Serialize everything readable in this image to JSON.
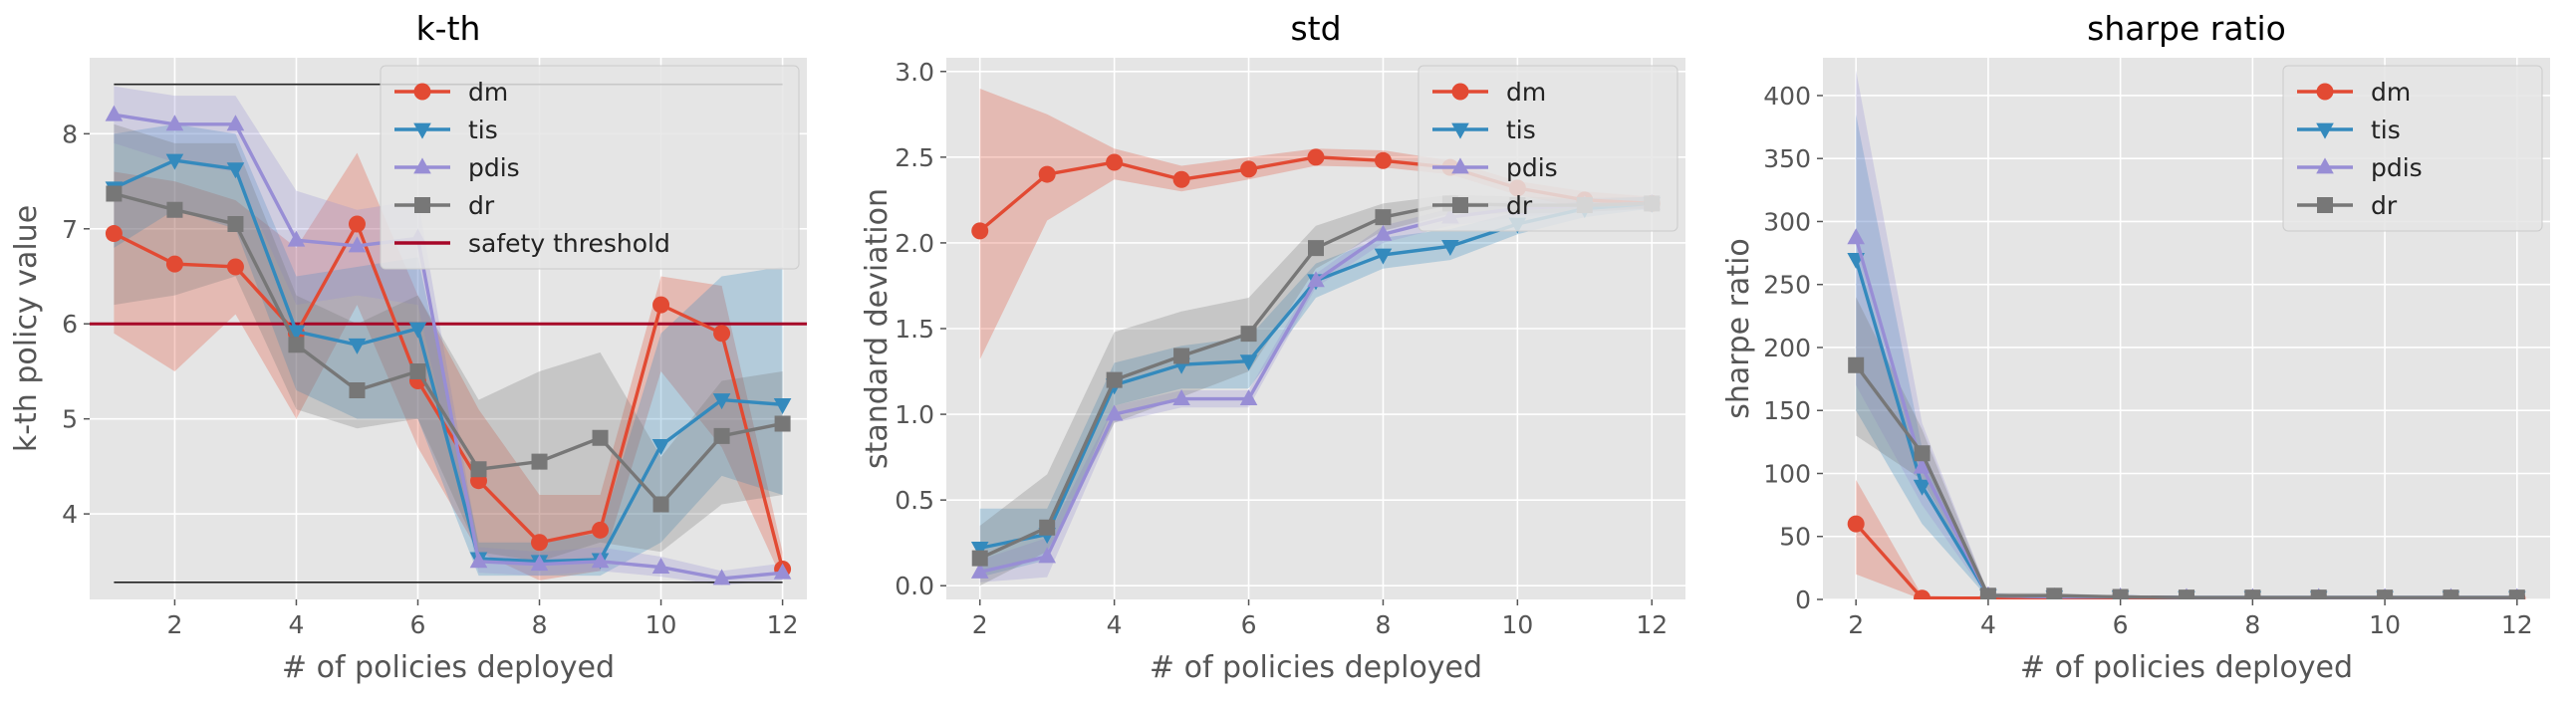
{
  "chart_data": [
    {
      "type": "line",
      "title": "k-th",
      "xlabel": "# of policies deployed",
      "ylabel": "k-th policy value",
      "xlim": [
        0.6,
        12.4
      ],
      "ylim": [
        3.1,
        8.8
      ],
      "xticks": [
        2,
        4,
        6,
        8,
        10,
        12
      ],
      "yticks": [
        4,
        5,
        6,
        7,
        8
      ],
      "grid": true,
      "legend": "top-right",
      "x": [
        1,
        2,
        3,
        4,
        5,
        6,
        7,
        8,
        9,
        10,
        11,
        12
      ],
      "series": [
        {
          "name": "dm",
          "marker": "circle",
          "color": "#E24A33",
          "values": [
            6.95,
            6.63,
            6.6,
            5.9,
            7.05,
            5.4,
            4.35,
            3.7,
            3.83,
            6.2,
            5.9,
            3.42
          ],
          "lower": [
            5.9,
            5.5,
            6.1,
            5.0,
            6.2,
            4.7,
            3.6,
            3.3,
            3.4,
            5.5,
            4.7,
            3.3
          ],
          "upper": [
            7.6,
            7.5,
            7.3,
            6.8,
            7.8,
            6.3,
            5.1,
            4.2,
            4.2,
            6.5,
            6.4,
            3.6
          ]
        },
        {
          "name": "tis",
          "marker": "triangle-down",
          "color": "#348ABD",
          "values": [
            7.43,
            7.72,
            7.63,
            5.92,
            5.78,
            5.95,
            3.53,
            3.5,
            3.52,
            4.72,
            5.2,
            5.15
          ],
          "lower": [
            6.8,
            7.2,
            7.0,
            5.3,
            5.0,
            5.0,
            3.35,
            3.35,
            3.35,
            3.7,
            4.4,
            4.2
          ],
          "upper": [
            8.0,
            8.1,
            8.0,
            6.5,
            6.6,
            6.7,
            3.7,
            3.7,
            3.8,
            5.9,
            6.5,
            6.6
          ]
        },
        {
          "name": "pdis",
          "marker": "triangle-up",
          "color": "#988ED5",
          "values": [
            8.2,
            8.1,
            8.1,
            6.88,
            6.82,
            6.9,
            3.5,
            3.47,
            3.5,
            3.44,
            3.32,
            3.38
          ],
          "lower": [
            7.9,
            7.7,
            7.6,
            6.2,
            6.3,
            6.2,
            3.38,
            3.35,
            3.4,
            3.34,
            3.25,
            3.3
          ],
          "upper": [
            8.5,
            8.4,
            8.4,
            7.4,
            7.2,
            7.3,
            3.65,
            3.6,
            3.65,
            3.55,
            3.4,
            3.48
          ]
        },
        {
          "name": "dr",
          "marker": "square",
          "color": "#777777",
          "values": [
            7.37,
            7.2,
            7.05,
            5.78,
            5.3,
            5.5,
            4.47,
            4.55,
            4.8,
            4.1,
            4.82,
            4.95
          ],
          "lower": [
            6.2,
            6.3,
            6.5,
            5.1,
            4.9,
            5.0,
            3.6,
            3.5,
            3.7,
            3.6,
            4.1,
            4.2
          ],
          "upper": [
            8.1,
            7.9,
            7.9,
            6.3,
            6.0,
            6.3,
            5.2,
            5.5,
            5.7,
            4.6,
            5.4,
            5.5
          ]
        }
      ],
      "hlines": [
        {
          "name": "safety threshold",
          "y": 6.0,
          "color": "#A60628",
          "in_legend": true
        },
        {
          "y": 8.52,
          "color": "#222222",
          "in_legend": false,
          "xmin": 1,
          "xmax": 12
        },
        {
          "y": 3.28,
          "color": "#222222",
          "in_legend": false,
          "xmin": 1,
          "xmax": 12
        }
      ]
    },
    {
      "type": "line",
      "title": "std",
      "xlabel": "# of policies deployed",
      "ylabel": "standard deviation",
      "xlim": [
        1.5,
        12.5
      ],
      "ylim": [
        -0.08,
        3.08
      ],
      "xticks": [
        2,
        4,
        6,
        8,
        10,
        12
      ],
      "yticks": [
        0.0,
        0.5,
        1.0,
        1.5,
        2.0,
        2.5,
        3.0
      ],
      "grid": true,
      "legend": "top-right",
      "x": [
        2,
        3,
        4,
        5,
        6,
        7,
        8,
        9,
        10,
        11,
        12
      ],
      "series": [
        {
          "name": "dm",
          "marker": "circle",
          "color": "#E24A33",
          "values": [
            2.07,
            2.4,
            2.47,
            2.37,
            2.43,
            2.5,
            2.48,
            2.44,
            2.32,
            2.25,
            2.23
          ],
          "lower": [
            1.32,
            2.13,
            2.37,
            2.3,
            2.37,
            2.45,
            2.44,
            2.4,
            2.28,
            2.2,
            2.2
          ],
          "upper": [
            2.9,
            2.75,
            2.55,
            2.45,
            2.5,
            2.55,
            2.54,
            2.48,
            2.36,
            2.3,
            2.27
          ]
        },
        {
          "name": "tis",
          "marker": "triangle-down",
          "color": "#348ABD",
          "values": [
            0.22,
            0.3,
            1.17,
            1.29,
            1.31,
            1.78,
            1.93,
            1.98,
            2.11,
            2.2,
            2.23
          ],
          "lower": [
            0.05,
            0.15,
            1.05,
            1.15,
            1.15,
            1.68,
            1.85,
            1.9,
            2.05,
            2.15,
            2.2
          ],
          "upper": [
            0.45,
            0.45,
            1.3,
            1.4,
            1.45,
            1.88,
            2.03,
            2.08,
            2.18,
            2.25,
            2.27
          ]
        },
        {
          "name": "pdis",
          "marker": "triangle-up",
          "color": "#988ED5",
          "values": [
            0.08,
            0.17,
            1.0,
            1.09,
            1.09,
            1.78,
            2.05,
            2.15,
            2.2,
            2.22,
            2.23
          ],
          "lower": [
            0.02,
            0.05,
            0.95,
            1.04,
            1.04,
            1.74,
            2.0,
            2.1,
            2.15,
            2.18,
            2.2
          ],
          "upper": [
            0.15,
            0.28,
            1.05,
            1.14,
            1.14,
            1.82,
            2.1,
            2.2,
            2.25,
            2.26,
            2.27
          ]
        },
        {
          "name": "dr",
          "marker": "square",
          "color": "#777777",
          "values": [
            0.16,
            0.34,
            1.2,
            1.34,
            1.47,
            1.97,
            2.15,
            2.23,
            2.22,
            2.22,
            2.23
          ],
          "lower": [
            0.0,
            0.2,
            0.95,
            1.1,
            1.25,
            1.85,
            2.07,
            2.17,
            2.17,
            2.18,
            2.2
          ],
          "upper": [
            0.35,
            0.65,
            1.48,
            1.6,
            1.68,
            2.1,
            2.23,
            2.28,
            2.27,
            2.26,
            2.27
          ]
        }
      ]
    },
    {
      "type": "line",
      "title": "sharpe ratio",
      "xlabel": "# of policies deployed",
      "ylabel": "sharpe ratio",
      "xlim": [
        1.5,
        12.5
      ],
      "ylim": [
        0,
        430
      ],
      "xticks": [
        2,
        4,
        6,
        8,
        10,
        12
      ],
      "yticks": [
        0,
        50,
        100,
        150,
        200,
        250,
        300,
        350,
        400
      ],
      "grid": true,
      "legend": "top-right",
      "x": [
        2,
        3,
        4,
        5,
        6,
        7,
        8,
        9,
        10,
        11,
        12
      ],
      "series": [
        {
          "name": "dm",
          "marker": "circle",
          "color": "#E24A33",
          "values": [
            60,
            1,
            1,
            1,
            1,
            1,
            1,
            1,
            1,
            1,
            1
          ],
          "lower": [
            20,
            0,
            0,
            0,
            0,
            0,
            0,
            0,
            0,
            0,
            0
          ],
          "upper": [
            95,
            3,
            2,
            2,
            2,
            2,
            2,
            2,
            2,
            2,
            2
          ]
        },
        {
          "name": "tis",
          "marker": "triangle-down",
          "color": "#348ABD",
          "values": [
            270,
            90,
            3,
            2,
            2,
            1.5,
            1.5,
            1.5,
            1.5,
            1.5,
            1.5
          ],
          "lower": [
            150,
            60,
            1,
            1,
            1,
            1,
            1,
            1,
            1,
            1,
            1
          ],
          "upper": [
            385,
            120,
            5,
            3,
            3,
            2,
            2,
            2,
            2,
            2,
            2
          ]
        },
        {
          "name": "pdis",
          "marker": "triangle-up",
          "color": "#988ED5",
          "values": [
            287,
            105,
            3,
            2,
            2,
            1.5,
            1.5,
            1.5,
            1.5,
            1.5,
            1.5
          ],
          "lower": [
            170,
            75,
            1,
            1,
            1,
            1,
            1,
            1,
            1,
            1,
            1
          ],
          "upper": [
            420,
            140,
            5,
            3,
            3,
            2,
            2,
            2,
            2,
            2,
            2
          ]
        },
        {
          "name": "dr",
          "marker": "square",
          "color": "#777777",
          "values": [
            186,
            116,
            3,
            3,
            2,
            1.5,
            1.5,
            1.5,
            1.5,
            1.5,
            1.5
          ],
          "lower": [
            130,
            95,
            1,
            1,
            1,
            1,
            1,
            1,
            1,
            1,
            1
          ],
          "upper": [
            240,
            135,
            5,
            5,
            3,
            2,
            2,
            2,
            2,
            2,
            2
          ]
        }
      ]
    }
  ]
}
